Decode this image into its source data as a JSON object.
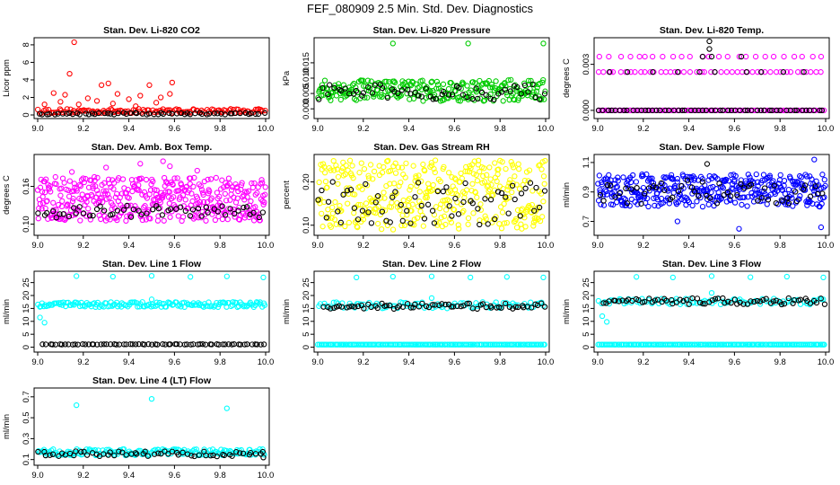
{
  "page_title": "FEF_080909  2.5 Min. Std. Dev. Diagnostics",
  "chart_data": [
    {
      "type": "scatter",
      "title": "Stan. Dev. Li-820 CO2",
      "ylabel": "Licor ppm",
      "xlim": [
        9.0,
        10.0
      ],
      "ylim": [
        0,
        8.4
      ],
      "xticks": [
        "9.0",
        "9.2",
        "9.4",
        "9.6",
        "9.8",
        "10.0"
      ],
      "yticks": [
        "0",
        "2",
        "4",
        "6",
        "8"
      ],
      "series": [
        {
          "color": "#ff0000",
          "points": [
            [
              9.16,
              8.3
            ],
            [
              9.14,
              4.7
            ],
            [
              9.59,
              3.7
            ],
            [
              9.31,
              3.6
            ],
            [
              9.28,
              3.4
            ],
            [
              9.49,
              3.4
            ],
            [
              9.07,
              2.5
            ],
            [
              9.12,
              2.3
            ],
            [
              9.35,
              2.4
            ],
            [
              9.45,
              2.2
            ],
            [
              9.54,
              2.0
            ],
            [
              9.22,
              1.9
            ],
            [
              9.58,
              2.4
            ],
            [
              9.4,
              1.8
            ],
            [
              9.26,
              1.6
            ],
            [
              9.1,
              1.5
            ],
            [
              9.03,
              1.2
            ],
            [
              9.18,
              1.2
            ],
            [
              9.33,
              1.3
            ],
            [
              9.52,
              1.4
            ],
            [
              9.43,
              1.0
            ],
            [
              9.62,
              0.6
            ],
            [
              9.7,
              0.5
            ],
            [
              9.8,
              0.4
            ],
            [
              9.9,
              0.4
            ],
            [
              9.98,
              0.4
            ]
          ],
          "band": {
            "xmin": 9.0,
            "xmax": 10.0,
            "ymin": 0.2,
            "ymax": 0.7,
            "n": 130
          }
        },
        {
          "color": "#000000",
          "points": [],
          "band": {
            "xmin": 9.0,
            "xmax": 10.0,
            "ymin": 0.05,
            "ymax": 0.25,
            "n": 60
          }
        }
      ]
    },
    {
      "type": "scatter",
      "title": "Stan. Dev. Li-820 Pressure",
      "ylabel": "kPa",
      "xlim": [
        9.0,
        10.0
      ],
      "ylim": [
        -0.002,
        0.022
      ],
      "xticks": [
        "9.0",
        "9.2",
        "9.4",
        "9.6",
        "9.8",
        "10.0"
      ],
      "yticks": [
        "0.000",
        "0.005",
        "0.010",
        "0.015"
      ],
      "series": [
        {
          "color": "#00cc00",
          "points": [
            [
              9.33,
              0.0213
            ],
            [
              9.66,
              0.0213
            ],
            [
              9.99,
              0.0213
            ]
          ],
          "band": {
            "xmin": 9.0,
            "xmax": 10.0,
            "ymin": 0.0025,
            "ymax": 0.0095,
            "n": 260
          }
        },
        {
          "color": "#000000",
          "points": [],
          "band": {
            "xmin": 9.0,
            "xmax": 10.0,
            "ymin": 0.003,
            "ymax": 0.008,
            "n": 60
          }
        }
      ]
    },
    {
      "type": "scatter",
      "title": "Stan. Dev. Li-820 Temp.",
      "ylabel": "degrees C",
      "xlim": [
        9.0,
        10.0
      ],
      "ylim": [
        -0.0003,
        0.0045
      ],
      "xticks": [
        "9.0",
        "9.2",
        "9.4",
        "9.6",
        "9.8",
        "10.0"
      ],
      "yticks": [
        "0.000",
        "0.003"
      ],
      "series": [
        {
          "color": "#ff00ff",
          "points": [],
          "rows": [
            {
              "y": 0.0035,
              "n": 25
            },
            {
              "y": 0.0025,
              "n": 45
            },
            {
              "y": 0.0,
              "n": 90
            }
          ]
        },
        {
          "color": "#000000",
          "points": [
            [
              9.49,
              0.0045
            ],
            [
              9.49,
              0.004
            ],
            [
              9.63,
              0.0035
            ],
            [
              9.46,
              0.0035
            ],
            [
              9.5,
              0.0035
            ]
          ],
          "rows": [
            {
              "y": 0.0025,
              "n": 10
            },
            {
              "y": 0.0,
              "n": 55
            }
          ]
        }
      ]
    },
    {
      "type": "scatter",
      "title": "Stan. Dev. Amb. Box Temp.",
      "ylabel": "degrees C",
      "xlim": [
        9.0,
        10.0
      ],
      "ylim": [
        0.088,
        0.205
      ],
      "xticks": [
        "9.0",
        "9.2",
        "9.4",
        "9.6",
        "9.8",
        "10.0"
      ],
      "yticks": [
        "0.10",
        "0.16"
      ],
      "series": [
        {
          "color": "#ff00ff",
          "points": [
            [
              9.55,
              0.2
            ],
            [
              9.45,
              0.196
            ],
            [
              9.3,
              0.19
            ],
            [
              9.58,
              0.192
            ],
            [
              9.15,
              0.183
            ],
            [
              9.7,
              0.185
            ]
          ],
          "band": {
            "xmin": 9.0,
            "xmax": 10.0,
            "ymin": 0.105,
            "ymax": 0.175,
            "n": 420
          }
        },
        {
          "color": "#000000",
          "points": [],
          "band": {
            "xmin": 9.0,
            "xmax": 10.0,
            "ymin": 0.11,
            "ymax": 0.13,
            "n": 55
          }
        }
      ]
    },
    {
      "type": "scatter",
      "title": "Stan. Dev. Gas Stream RH",
      "ylabel": "percent",
      "xlim": [
        9.0,
        10.0
      ],
      "ylim": [
        0.085,
        0.255
      ],
      "xticks": [
        "9.0",
        "9.2",
        "9.4",
        "9.6",
        "9.8",
        "10.0"
      ],
      "yticks": [
        "0.10",
        "0.20"
      ],
      "series": [
        {
          "color": "#ffff00",
          "points": [],
          "band": {
            "xmin": 9.0,
            "xmax": 10.0,
            "ymin": 0.09,
            "ymax": 0.25,
            "n": 380
          }
        },
        {
          "color": "#000000",
          "points": [],
          "band": {
            "xmin": 9.0,
            "xmax": 10.0,
            "ymin": 0.1,
            "ymax": 0.2,
            "n": 65
          }
        }
      ]
    },
    {
      "type": "scatter",
      "title": "Stan. Dev. Sample Flow",
      "ylabel": "ml/min",
      "xlim": [
        9.0,
        10.0
      ],
      "ylim": [
        0.63,
        1.13
      ],
      "xticks": [
        "9.0",
        "9.2",
        "9.4",
        "9.6",
        "9.8",
        "10.0"
      ],
      "yticks": [
        "0.7",
        "0.9",
        "1.1"
      ],
      "series": [
        {
          "color": "#0000ff",
          "points": [
            [
              9.62,
              0.65
            ],
            [
              9.98,
              0.66
            ],
            [
              9.95,
              1.12
            ],
            [
              9.35,
              0.7
            ]
          ],
          "band": {
            "xmin": 9.0,
            "xmax": 10.0,
            "ymin": 0.8,
            "ymax": 1.02,
            "n": 380
          }
        },
        {
          "color": "#000000",
          "points": [
            [
              9.48,
              1.09
            ]
          ],
          "band": {
            "xmin": 9.0,
            "xmax": 10.0,
            "ymin": 0.82,
            "ymax": 0.98,
            "n": 55
          }
        }
      ]
    },
    {
      "type": "scatter",
      "title": "Stan. Dev. Line 1 Flow",
      "ylabel": "ml/min",
      "xlim": [
        9.0,
        10.0
      ],
      "ylim": [
        -0.5,
        28
      ],
      "xticks": [
        "9.0",
        "9.2",
        "9.4",
        "9.6",
        "9.8",
        "10.0"
      ],
      "yticks": [
        "0",
        "5",
        "10",
        "15",
        "20",
        "25"
      ],
      "series": [
        {
          "color": "#00ffff",
          "points": [
            [
              9.17,
              27.5
            ],
            [
              9.33,
              27.3
            ],
            [
              9.5,
              27.6
            ],
            [
              9.67,
              27.2
            ],
            [
              9.83,
              27.4
            ],
            [
              9.99,
              27.0
            ],
            [
              9.01,
              11.5
            ],
            [
              9.03,
              9.5
            ],
            [
              9.5,
              18.5
            ]
          ],
          "band": {
            "xmin": 9.0,
            "xmax": 10.0,
            "ymin": 15.5,
            "ymax": 17.5,
            "n": 160
          }
        },
        {
          "color": "#000000",
          "points": [],
          "band": {
            "xmin": 9.02,
            "xmax": 10.0,
            "ymin": 1.0,
            "ymax": 1.2,
            "n": 70
          }
        }
      ]
    },
    {
      "type": "scatter",
      "title": "Stan. Dev. Line 2 Flow",
      "ylabel": "ml/min",
      "xlim": [
        9.0,
        10.0
      ],
      "ylim": [
        -0.5,
        28
      ],
      "xticks": [
        "9.0",
        "9.2",
        "9.4",
        "9.6",
        "9.8",
        "10.0"
      ],
      "yticks": [
        "0",
        "5",
        "10",
        "15",
        "20",
        "25"
      ],
      "series": [
        {
          "color": "#00ffff",
          "points": [
            [
              9.17,
              27.0
            ],
            [
              9.33,
              27.3
            ],
            [
              9.5,
              27.4
            ],
            [
              9.67,
              27.0
            ],
            [
              9.83,
              27.2
            ],
            [
              9.99,
              27.0
            ],
            [
              9.5,
              19.0
            ]
          ],
          "band": {
            "xmin": 9.0,
            "xmax": 10.0,
            "ymin": 15.0,
            "ymax": 17.5,
            "n": 90
          },
          "rows": [
            {
              "y": 1.0,
              "n": 150
            }
          ]
        },
        {
          "color": "#000000",
          "points": [],
          "band": {
            "xmin": 9.02,
            "xmax": 10.0,
            "ymin": 14.8,
            "ymax": 17.0,
            "n": 70
          }
        }
      ]
    },
    {
      "type": "scatter",
      "title": "Stan. Dev. Line 3 Flow",
      "ylabel": "ml/min",
      "xlim": [
        9.0,
        10.0
      ],
      "ylim": [
        -0.5,
        28
      ],
      "xticks": [
        "9.0",
        "9.2",
        "9.4",
        "9.6",
        "9.8",
        "10.0"
      ],
      "yticks": [
        "0",
        "5",
        "10",
        "15",
        "20",
        "25"
      ],
      "series": [
        {
          "color": "#00ffff",
          "points": [
            [
              9.17,
              27.2
            ],
            [
              9.33,
              27.0
            ],
            [
              9.5,
              27.5
            ],
            [
              9.67,
              27.1
            ],
            [
              9.83,
              27.3
            ],
            [
              9.99,
              27.0
            ],
            [
              9.02,
              12.0
            ],
            [
              9.04,
              9.8
            ],
            [
              9.5,
              21.0
            ]
          ],
          "band": {
            "xmin": 9.0,
            "xmax": 10.0,
            "ymin": 16.5,
            "ymax": 18.8,
            "n": 90
          },
          "rows": [
            {
              "y": 1.0,
              "n": 150
            }
          ]
        },
        {
          "color": "#000000",
          "points": [],
          "band": {
            "xmin": 9.02,
            "xmax": 10.0,
            "ymin": 16.5,
            "ymax": 19.0,
            "n": 70
          }
        }
      ]
    },
    {
      "type": "scatter",
      "title": "Stan. Dev. Line 4 (LT) Flow",
      "ylabel": "ml/min",
      "xlim": [
        9.0,
        10.0
      ],
      "ylim": [
        0.08,
        0.75
      ],
      "xticks": [
        "9.0",
        "9.2",
        "9.4",
        "9.6",
        "9.8",
        "10.0"
      ],
      "yticks": [
        "0.1",
        "0.3",
        "0.5",
        "0.7"
      ],
      "series": [
        {
          "color": "#00ffff",
          "points": [
            [
              9.5,
              0.68
            ],
            [
              9.17,
              0.62
            ],
            [
              9.83,
              0.59
            ]
          ],
          "band": {
            "xmin": 9.0,
            "xmax": 10.0,
            "ymin": 0.14,
            "ymax": 0.2,
            "n": 170
          }
        },
        {
          "color": "#000000",
          "points": [
            [
              9.99,
              0.12
            ]
          ],
          "band": {
            "xmin": 9.0,
            "xmax": 10.0,
            "ymin": 0.13,
            "ymax": 0.18,
            "n": 60
          }
        }
      ]
    }
  ]
}
